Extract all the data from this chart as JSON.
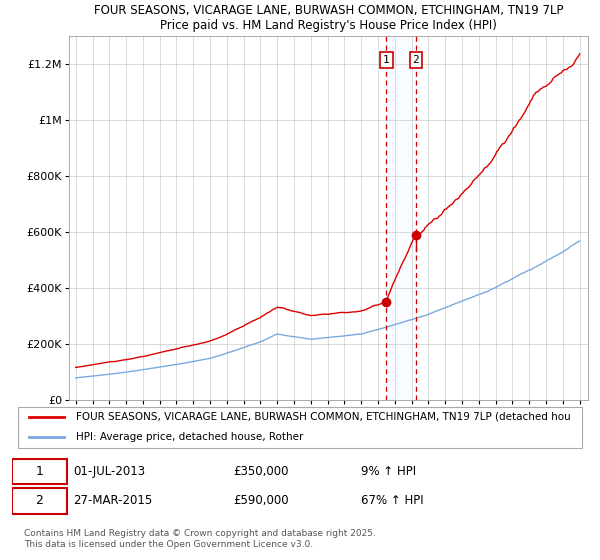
{
  "title_line1": "FOUR SEASONS, VICARAGE LANE, BURWASH COMMON, ETCHINGHAM, TN19 7LP",
  "title_line2": "Price paid vs. HM Land Registry's House Price Index (HPI)",
  "xlim_start": 1994.6,
  "xlim_end": 2025.5,
  "ylim": [
    0,
    1300000
  ],
  "yticks": [
    0,
    200000,
    400000,
    600000,
    800000,
    1000000,
    1200000
  ],
  "ytick_labels": [
    "£0",
    "£200K",
    "£400K",
    "£600K",
    "£800K",
    "£1M",
    "£1.2M"
  ],
  "sale1_date": 2013.5,
  "sale1_price": 350000,
  "sale2_date": 2015.25,
  "sale2_price": 590000,
  "legend_line1": "FOUR SEASONS, VICARAGE LANE, BURWASH COMMON, ETCHINGHAM, TN19 7LP (detached hou",
  "legend_line2": "HPI: Average price, detached house, Rother",
  "note_line1": "01-JUL-2013",
  "note1_price": "£350,000",
  "note1_hpi": "9% ↑ HPI",
  "note_line2": "27-MAR-2015",
  "note2_price": "£590,000",
  "note2_hpi": "67% ↑ HPI",
  "footer": "Contains HM Land Registry data © Crown copyright and database right 2025.\nThis data is licensed under the Open Government Licence v3.0.",
  "line_color_red": "#dd0000",
  "line_color_blue": "#7aaadd",
  "bg_color": "#ffffff",
  "grid_color": "#cccccc",
  "sale_marker_color": "#cc0000",
  "dashed_line_color": "#cc0000",
  "shaded_color": "#ddeeff"
}
